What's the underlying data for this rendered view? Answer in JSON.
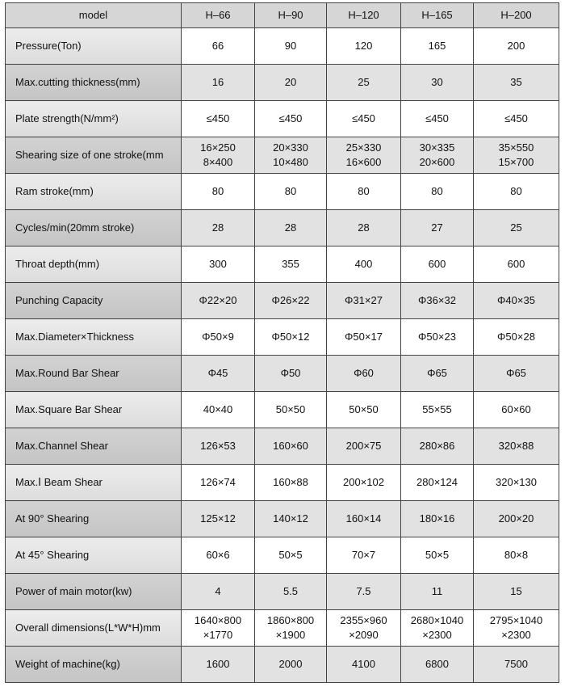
{
  "table": {
    "header": [
      "model",
      "H–66",
      "H–90",
      "H–120",
      "H–165",
      "H–200"
    ],
    "rows": [
      [
        "Pressure(Ton)",
        "66",
        "90",
        "120",
        "165",
        "200"
      ],
      [
        "Max.cutting thickness(mm)",
        "16",
        "20",
        "25",
        "30",
        "35"
      ],
      [
        "Plate strength(N/mm²)",
        "≤450",
        "≤450",
        "≤450",
        "≤450",
        "≤450"
      ],
      [
        "Shearing size of one stroke(mm",
        "16×250\n8×400",
        "20×330\n10×480",
        "25×330\n16×600",
        "30×335\n20×600",
        "35×550\n15×700"
      ],
      [
        "Ram stroke(mm)",
        "80",
        "80",
        "80",
        "80",
        "80"
      ],
      [
        "Cycles/min(20mm stroke)",
        "28",
        "28",
        "28",
        "27",
        "25"
      ],
      [
        "Throat depth(mm)",
        "300",
        "355",
        "400",
        "600",
        "600"
      ],
      [
        "Punching Capacity",
        "Φ22×20",
        "Φ26×22",
        "Φ31×27",
        "Φ36×32",
        "Φ40×35"
      ],
      [
        "Max.Diameter×Thickness",
        "Φ50×9",
        "Φ50×12",
        "Φ50×17",
        "Φ50×23",
        "Φ50×28"
      ],
      [
        "Max.Round Bar Shear",
        "Φ45",
        "Φ50",
        "Φ60",
        "Φ65",
        "Φ65"
      ],
      [
        "Max.Square Bar Shear",
        "40×40",
        "50×50",
        "50×50",
        "55×55",
        "60×60"
      ],
      [
        "Max.Channel Shear",
        "126×53",
        "160×60",
        "200×75",
        "280×86",
        "320×88"
      ],
      [
        "Max.Ⅰ Beam Shear",
        "126×74",
        "160×88",
        "200×102",
        "280×124",
        "320×130"
      ],
      [
        "At 90°  Shearing",
        "125×12",
        "140×12",
        "160×14",
        "180×16",
        "200×20"
      ],
      [
        "At 45°  Shearing",
        "60×6",
        "50×5",
        "70×7",
        "50×5",
        "80×8"
      ],
      [
        "Power of main motor(kw)",
        "4",
        "5.5",
        "7.5",
        "11",
        "15"
      ],
      [
        "Overall dimensions(L*W*H)mm",
        "1640×800\n×1770",
        "1860×800\n×1900",
        "2355×960\n×2090",
        "2680×1040\n×2300",
        "2795×1040\n×2300"
      ],
      [
        "Weight of machine(kg)",
        "1600",
        "2000",
        "4100",
        "6800",
        "7500"
      ]
    ]
  }
}
